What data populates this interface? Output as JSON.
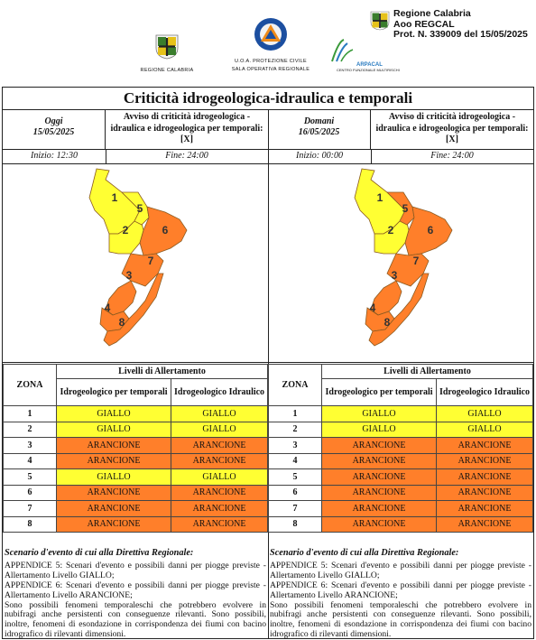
{
  "header": {
    "logo_regione_label": "REGIONE CALABRIA",
    "protezione_line1": "U.O.A. PROTEZIONE CIVILE",
    "protezione_line2": "SALA OPERATIVA REGIONALE",
    "arpacal_label": "ARPACAL",
    "arpacal_sub": "CENTRO FUNZIONALE MULTIRISCHI",
    "stamp_line1": "Regione Calabria",
    "stamp_line2": "Aoo REGCAL",
    "stamp_line3": "Prot. N. 339009 del 15/05/2025"
  },
  "title": "Criticità idrogeologica-idraulica e temporali",
  "colors": {
    "giallo": "#ffff33",
    "arancione": "#ff7f2a"
  },
  "days": [
    {
      "label": "Oggi",
      "date": "15/05/2025",
      "avviso": "Avviso di criticità idrogeologica - idraulica e idrogeologica per temporali: [X]",
      "inizio": "Inizio: 12:30",
      "fine": "Fine: 24:00",
      "zone_colors": [
        "giallo",
        "giallo",
        "arancione",
        "arancione",
        "giallo",
        "arancione",
        "arancione",
        "arancione"
      ]
    },
    {
      "label": "Domani",
      "date": "16/05/2025",
      "avviso": "Avviso di criticità idrogeologica - idraulica e idrogeologica per temporali: [X]",
      "inizio": "Inizio: 00:00",
      "fine": "Fine: 24:00",
      "zone_colors": [
        "giallo",
        "giallo",
        "arancione",
        "arancione",
        "arancione",
        "arancione",
        "arancione",
        "arancione"
      ]
    }
  ],
  "table": {
    "zona_header": "ZONA",
    "livelli_header": "Livelli di Allertamento",
    "col1_header": "Idrogeologico per temporali",
    "col2_header": "Idrogeologico Idraulico",
    "left_rows": [
      [
        "1",
        "GIALLO",
        "GIALLO"
      ],
      [
        "2",
        "GIALLO",
        "GIALLO"
      ],
      [
        "3",
        "ARANCIONE",
        "ARANCIONE"
      ],
      [
        "4",
        "ARANCIONE",
        "ARANCIONE"
      ],
      [
        "5",
        "GIALLO",
        "GIALLO"
      ],
      [
        "6",
        "ARANCIONE",
        "ARANCIONE"
      ],
      [
        "7",
        "ARANCIONE",
        "ARANCIONE"
      ],
      [
        "8",
        "ARANCIONE",
        "ARANCIONE"
      ]
    ],
    "right_rows": [
      [
        "1",
        "GIALLO",
        "GIALLO"
      ],
      [
        "2",
        "GIALLO",
        "GIALLO"
      ],
      [
        "3",
        "ARANCIONE",
        "ARANCIONE"
      ],
      [
        "4",
        "ARANCIONE",
        "ARANCIONE"
      ],
      [
        "5",
        "ARANCIONE",
        "ARANCIONE"
      ],
      [
        "6",
        "ARANCIONE",
        "ARANCIONE"
      ],
      [
        "7",
        "ARANCIONE",
        "ARANCIONE"
      ],
      [
        "8",
        "ARANCIONE",
        "ARANCIONE"
      ]
    ]
  },
  "scenario": {
    "heading": "Scenario d'evento di cui alla Direttiva Regionale:",
    "p1": "APPENDICE 5: Scenari d'evento e possibili danni per piogge previste - Allertamento Livello GIALLO;",
    "p2": "APPENDICE 6: Scenari d'evento e possibili danni per piogge previste - Allertamento Livello ARANCIONE;",
    "p3": "Sono possibili fenomeni temporaleschi che potrebbero evolvere in nubifragi anche persistenti con conseguenze rilevanti. Sono possibili, inoltre, fenomeni di esondazione in corrispondenza dei fiumi con bacino idrografico di rilevanti dimensioni."
  }
}
